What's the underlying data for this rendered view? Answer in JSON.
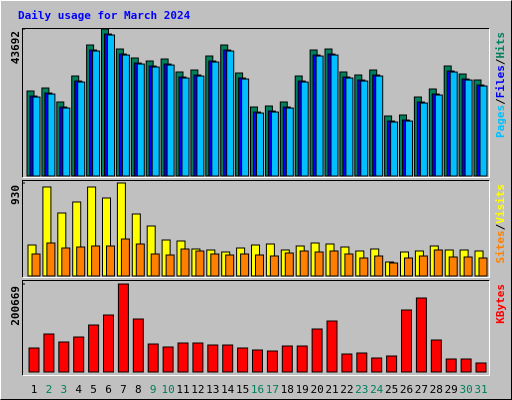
{
  "chart_data": [
    {
      "type": "bar",
      "title": "Daily usage for March 2024",
      "legend_separator": "/",
      "series": [
        {
          "name": "Hits",
          "color": "#00805c",
          "values": [
            25265,
            26156,
            21995,
            29723,
            38937,
            43692,
            37748,
            35073,
            34181,
            34775,
            30912,
            31506,
            35667,
            38937,
            30614,
            20509,
            20806,
            21995,
            29723,
            37451,
            37748,
            30912,
            30020,
            31506,
            17834,
            18131,
            23481,
            25859,
            32695,
            30317,
            28534
          ]
        },
        {
          "name": "Files",
          "color": "#0000ff",
          "values": [
            23765,
            24656,
            20495,
            28223,
            37437,
            42192,
            36248,
            33573,
            32681,
            33275,
            29412,
            30006,
            34167,
            37437,
            29114,
            19009,
            19306,
            20495,
            28223,
            35951,
            36248,
            29412,
            28520,
            30006,
            16334,
            16631,
            21981,
            24359,
            31195,
            28817,
            27034
          ]
        },
        {
          "name": "Pages",
          "color": "#00c0ff",
          "values": [
            23465,
            24356,
            20195,
            27923,
            37137,
            41892,
            35948,
            33273,
            32381,
            32975,
            29112,
            29706,
            33867,
            37137,
            28814,
            18709,
            19006,
            20195,
            27923,
            35651,
            35948,
            29112,
            28220,
            29706,
            16034,
            16331,
            21681,
            24059,
            30895,
            28517,
            26734
          ]
        }
      ],
      "ylim": [
        0,
        43692
      ],
      "yticks": [
        43692
      ]
    },
    {
      "type": "bar",
      "legend_separator": "/",
      "series": [
        {
          "name": "Visits",
          "color": "#ffff00",
          "values": [
            310,
            890,
            630,
            740,
            890,
            780,
            930,
            620,
            500,
            360,
            350,
            270,
            260,
            240,
            280,
            310,
            320,
            260,
            300,
            330,
            320,
            290,
            250,
            270,
            140,
            240,
            250,
            300,
            260,
            260,
            250
          ]
        },
        {
          "name": "Sites",
          "color": "#ff8000",
          "values": [
            220,
            330,
            280,
            290,
            300,
            300,
            370,
            320,
            220,
            210,
            270,
            250,
            220,
            210,
            220,
            210,
            200,
            230,
            250,
            240,
            250,
            220,
            180,
            200,
            130,
            180,
            200,
            260,
            190,
            190,
            180
          ]
        }
      ],
      "ylim": [
        0,
        930
      ],
      "yticks": [
        930
      ]
    },
    {
      "type": "bar",
      "categories": [
        "1",
        "2",
        "3",
        "4",
        "5",
        "6",
        "7",
        "8",
        "9",
        "10",
        "11",
        "12",
        "13",
        "14",
        "15",
        "16",
        "17",
        "18",
        "19",
        "20",
        "21",
        "22",
        "23",
        "24",
        "25",
        "26",
        "27",
        "28",
        "29",
        "30",
        "31"
      ],
      "category_colors": [
        "#000000",
        "#00805c",
        "#00805c",
        "#000000",
        "#000000",
        "#000000",
        "#000000",
        "#000000",
        "#00805c",
        "#00805c",
        "#000000",
        "#000000",
        "#000000",
        "#000000",
        "#000000",
        "#00805c",
        "#00805c",
        "#000000",
        "#000000",
        "#000000",
        "#000000",
        "#000000",
        "#00805c",
        "#00805c",
        "#000000",
        "#000000",
        "#000000",
        "#000000",
        "#000000",
        "#00805c",
        "#00805c"
      ],
      "series": [
        {
          "name": "KBytes",
          "color": "#ff0000",
          "values": [
            54728,
            86653,
            68410,
            79811,
            107175,
            129978,
            200669,
            120858,
            63849,
            57008,
            66130,
            66130,
            61569,
            61569,
            54728,
            50167,
            47887,
            59289,
            59289,
            98054,
            116297,
            41046,
            43326,
            31925,
            36485,
            141380,
            168744,
            72971,
            29644,
            29644,
            20523
          ]
        }
      ],
      "ylim": [
        0,
        200669
      ],
      "yticks": [
        200669
      ]
    }
  ]
}
